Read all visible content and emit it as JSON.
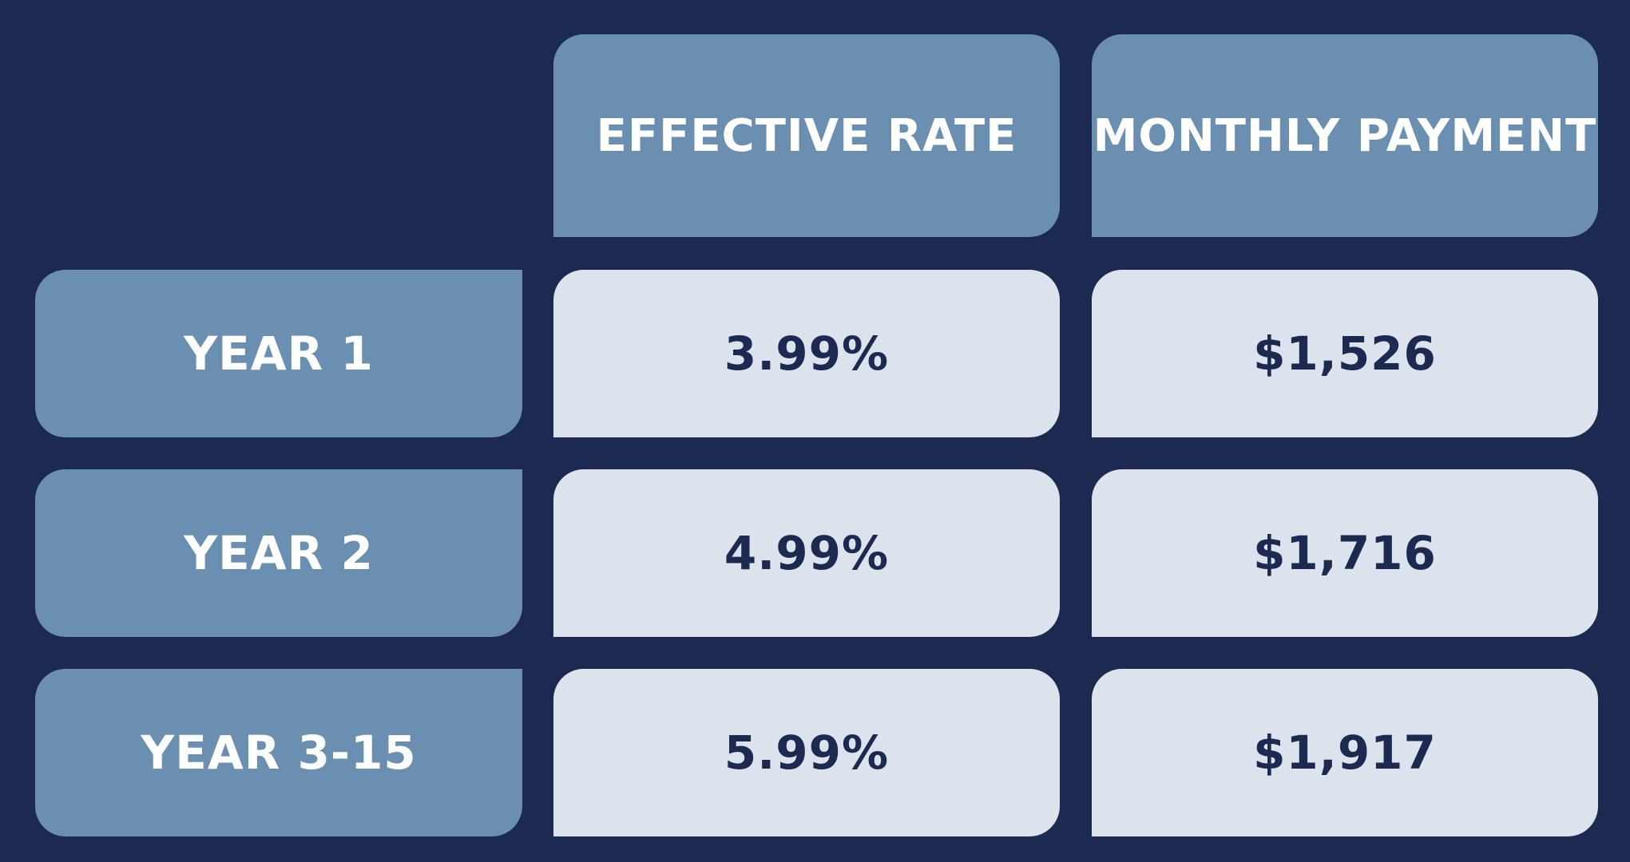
{
  "chart_data": {
    "type": "table",
    "columns": [
      "EFFECTIVE RATE",
      "MONTHLY PAYMENT"
    ],
    "rows": [
      {
        "label": "YEAR 1",
        "effective_rate": "3.99%",
        "monthly_payment": "$1,526"
      },
      {
        "label": "YEAR 2",
        "effective_rate": "4.99%",
        "monthly_payment": "$1,716"
      },
      {
        "label": "YEAR 3-15",
        "effective_rate": "5.99%",
        "monthly_payment": "$1,917"
      }
    ]
  },
  "theme": {
    "background": "#1c2951",
    "header_bg": "#6b8fb1",
    "header_text": "#ffffff",
    "value_bg": "#dce3ec",
    "value_text": "#1c2951"
  }
}
